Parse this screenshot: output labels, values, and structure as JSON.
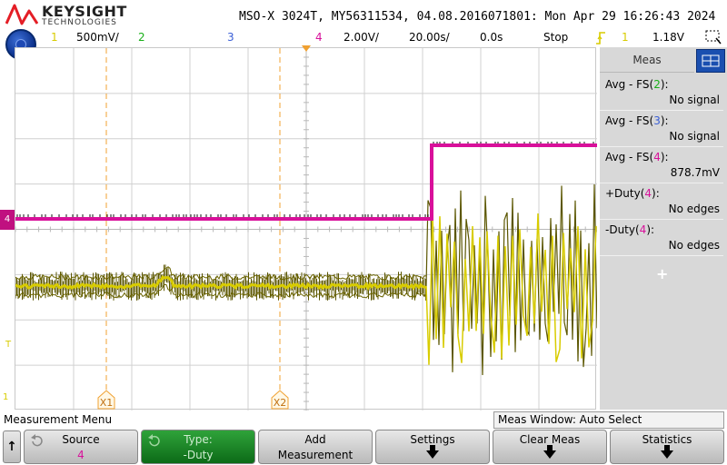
{
  "header": {
    "brand": "KEYSIGHT",
    "brand_sub": "TECHNOLOGIES",
    "title": "MSO-X 3024T, MY56311534, 04.08.2016071801: Mon Apr 29 16:26:43 2024"
  },
  "status": {
    "ch1_num": "1",
    "ch1_scale": "500mV/",
    "ch2_num": "2",
    "ch3_num": "3",
    "ch4_num": "4",
    "ch4_scale": "2.00V/",
    "timebase": "20.00s/",
    "delay": "0.0s",
    "run_state": "Stop",
    "trig_ch": "1",
    "trig_level": "1.18V"
  },
  "colors": {
    "ch1": "#d8cc00",
    "ch2": "#19b019",
    "ch3": "#3a5fd6",
    "ch4": "#d8109a",
    "cursor": "#f0a030"
  },
  "grid": {
    "cursor_x1": "X1",
    "cursor_x2": "X2",
    "ch4_marker": "4",
    "ch1_marker": "1",
    "trig_marker": "T"
  },
  "meas_panel": {
    "tab_label": "Meas",
    "rows": [
      {
        "pre": "Avg - FS(",
        "ch": "2",
        "post": "):",
        "value": "No signal"
      },
      {
        "pre": "Avg - FS(",
        "ch": "3",
        "post": "):",
        "value": "No signal"
      },
      {
        "pre": "Avg - FS(",
        "ch": "4",
        "post": "):",
        "value": "878.7mV"
      },
      {
        "pre": "+Duty(",
        "ch": "4",
        "post": "):",
        "value": "No edges"
      },
      {
        "pre": "-Duty(",
        "ch": "4",
        "post": "):",
        "value": "No edges"
      }
    ],
    "add_symbol": "+"
  },
  "menu": {
    "title": "Measurement Menu",
    "meas_window": "Meas Window: Auto Select",
    "back_symbol": "↑",
    "softkeys": [
      {
        "line1": "Source",
        "line2": "4"
      },
      {
        "line1": "Type:",
        "line2": "-Duty"
      },
      {
        "line1": "Add",
        "line2": "Measurement"
      },
      {
        "line1": "Settings",
        "line2": ""
      },
      {
        "line1": "Clear Meas",
        "line2": ""
      },
      {
        "line1": "Statistics",
        "line2": ""
      }
    ]
  }
}
